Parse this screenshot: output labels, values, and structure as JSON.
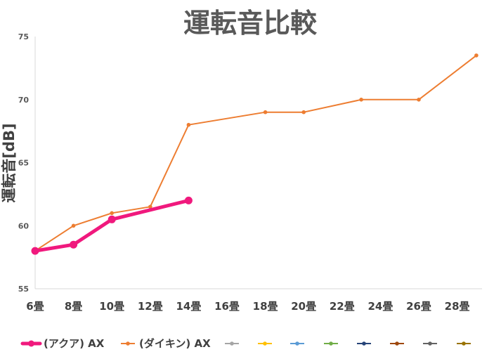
{
  "chart_data": {
    "type": "line",
    "title": "運転音比較",
    "xlabel": "",
    "ylabel": "運転音[dB]",
    "ylim": [
      55,
      75
    ],
    "yticks": [
      "55",
      "60",
      "65",
      "70",
      "75"
    ],
    "categories": [
      "6畳",
      "8畳",
      "10畳",
      "12畳",
      "14畳",
      "16畳",
      "18畳",
      "20畳",
      "22畳",
      "24畳",
      "26畳",
      "28畳"
    ],
    "grid": false,
    "legend_position": "bottom",
    "series": [
      {
        "name": "(アクア) AX",
        "color": "#f0197d",
        "points": [
          {
            "x": "6畳",
            "y": 58
          },
          {
            "x": "8畳",
            "y": 58.5
          },
          {
            "x": "10畳",
            "y": 60.5
          },
          {
            "x": "14畳",
            "y": 62
          }
        ]
      },
      {
        "name": "(ダイキン) AX",
        "color": "#ed7d31",
        "points": [
          {
            "x": "6畳",
            "y": 58
          },
          {
            "x": "8畳",
            "y": 60
          },
          {
            "x": "10畳",
            "y": 61
          },
          {
            "x": "12畳",
            "y": 61.5
          },
          {
            "x": "14畳",
            "y": 68
          },
          {
            "x": "18畳",
            "y": 69
          },
          {
            "x": "20畳",
            "y": 69
          },
          {
            "x": "23畳",
            "y": 70
          },
          {
            "x": "26畳",
            "y": 70
          },
          {
            "x": "29畳",
            "y": 73.5
          }
        ]
      }
    ],
    "empty_legend_colors": [
      "#a5a5a5",
      "#ffc000",
      "#5b9bd5",
      "#70ad47",
      "#264478",
      "#9e480e",
      "#636363",
      "#997300"
    ]
  }
}
